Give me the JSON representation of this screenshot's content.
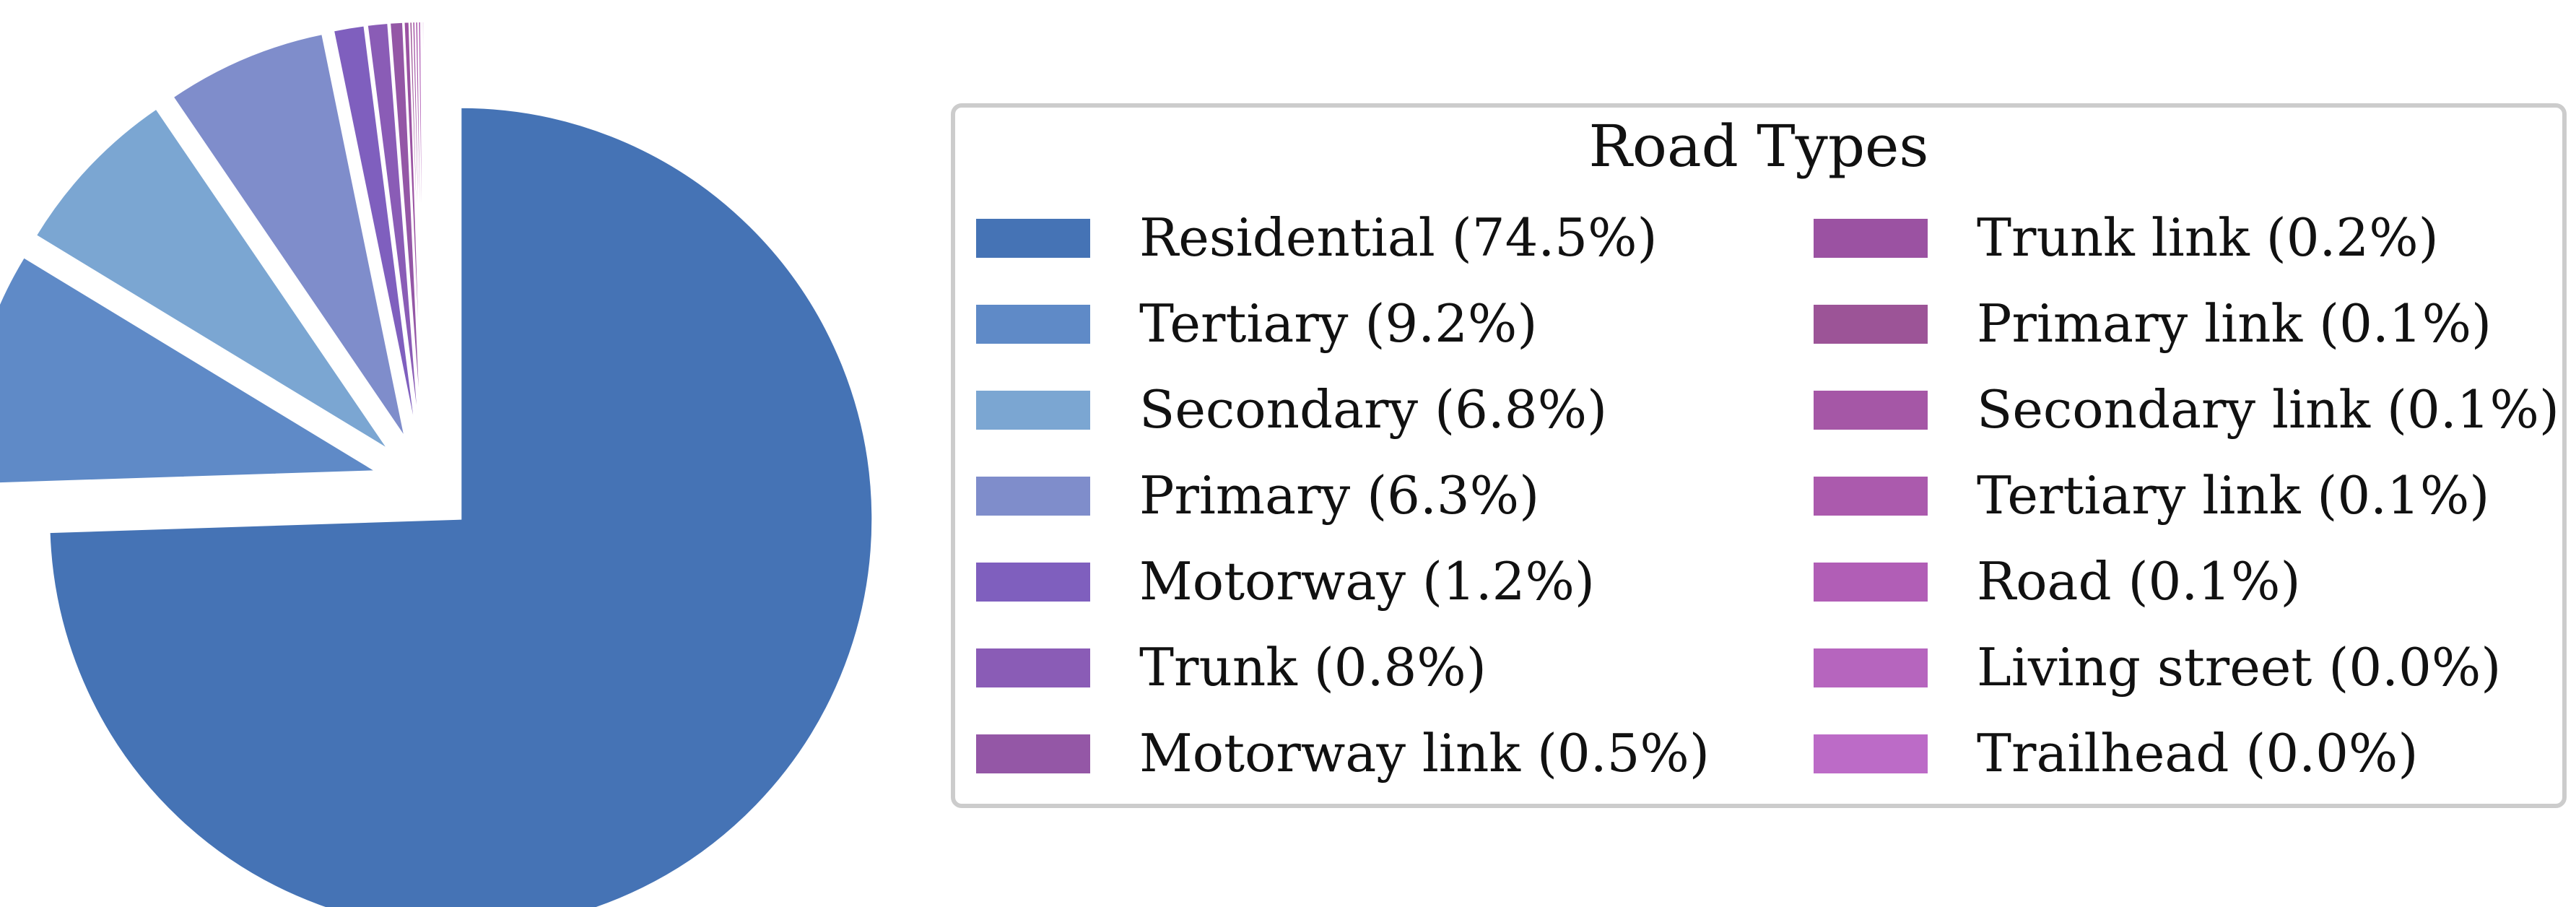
{
  "chart_data": {
    "type": "pie",
    "legend_title": "Road Types",
    "legend_placement": "right",
    "start_angle_deg": 90,
    "direction": "clockwise",
    "exploded": true,
    "slices": [
      {
        "name": "Residential",
        "value": 74.5,
        "label": "Residential (74.5%)",
        "color": "#4573b5"
      },
      {
        "name": "Tertiary",
        "value": 9.2,
        "label": "Tertiary (9.2%)",
        "color": "#5f8ac7"
      },
      {
        "name": "Secondary",
        "value": 6.8,
        "label": "Secondary (6.8%)",
        "color": "#7ba6d2"
      },
      {
        "name": "Primary",
        "value": 6.3,
        "label": "Primary (6.3%)",
        "color": "#7f8dcb"
      },
      {
        "name": "Motorway",
        "value": 1.2,
        "label": "Motorway (1.2%)",
        "color": "#7f5fbe"
      },
      {
        "name": "Trunk",
        "value": 0.8,
        "label": "Trunk (0.8%)",
        "color": "#8a5cb6"
      },
      {
        "name": "Motorway link",
        "value": 0.5,
        "label": "Motorway link (0.5%)",
        "color": "#9457a6"
      },
      {
        "name": "Trunk link",
        "value": 0.2,
        "label": "Trunk link (0.2%)",
        "color": "#9b52a2"
      },
      {
        "name": "Primary link",
        "value": 0.1,
        "label": "Primary link (0.1%)",
        "color": "#9c5497"
      },
      {
        "name": "Secondary link",
        "value": 0.1,
        "label": "Secondary link (0.1%)",
        "color": "#a557a6"
      },
      {
        "name": "Tertiary link",
        "value": 0.1,
        "label": "Tertiary link (0.1%)",
        "color": "#ab5aad"
      },
      {
        "name": "Road",
        "value": 0.1,
        "label": "Road (0.1%)",
        "color": "#b15eb6"
      },
      {
        "name": "Living street",
        "value": 0.0,
        "label": "Living street (0.0%)",
        "color": "#b665be"
      },
      {
        "name": "Trailhead",
        "value": 0.0,
        "label": "Trailhead (0.0%)",
        "color": "#bc6bc7"
      }
    ]
  }
}
